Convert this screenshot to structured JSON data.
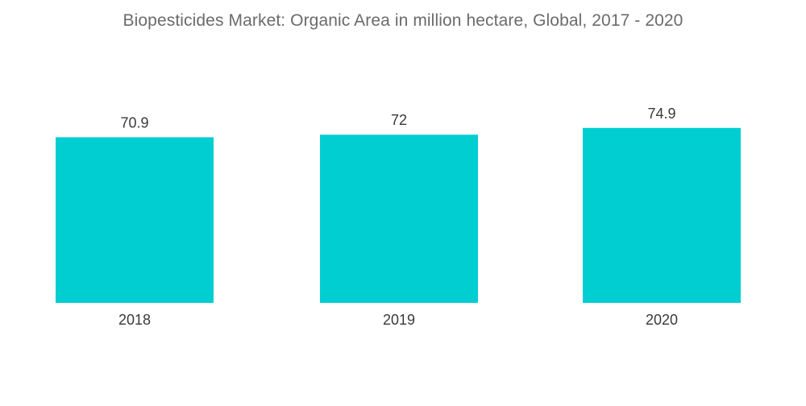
{
  "chart_data": {
    "type": "bar",
    "title": "Biopesticides Market: Organic Area in million hectare, Global, 2017 - 2020",
    "categories": [
      "2018",
      "2019",
      "2020"
    ],
    "values": [
      70.9,
      72,
      74.9
    ],
    "data_labels": [
      "70.9",
      "72",
      "74.9"
    ],
    "xlabel": "",
    "ylabel": "",
    "ylim": [
      0,
      80
    ],
    "grid": false,
    "legend": "none",
    "bar_color": "#00CED1"
  }
}
